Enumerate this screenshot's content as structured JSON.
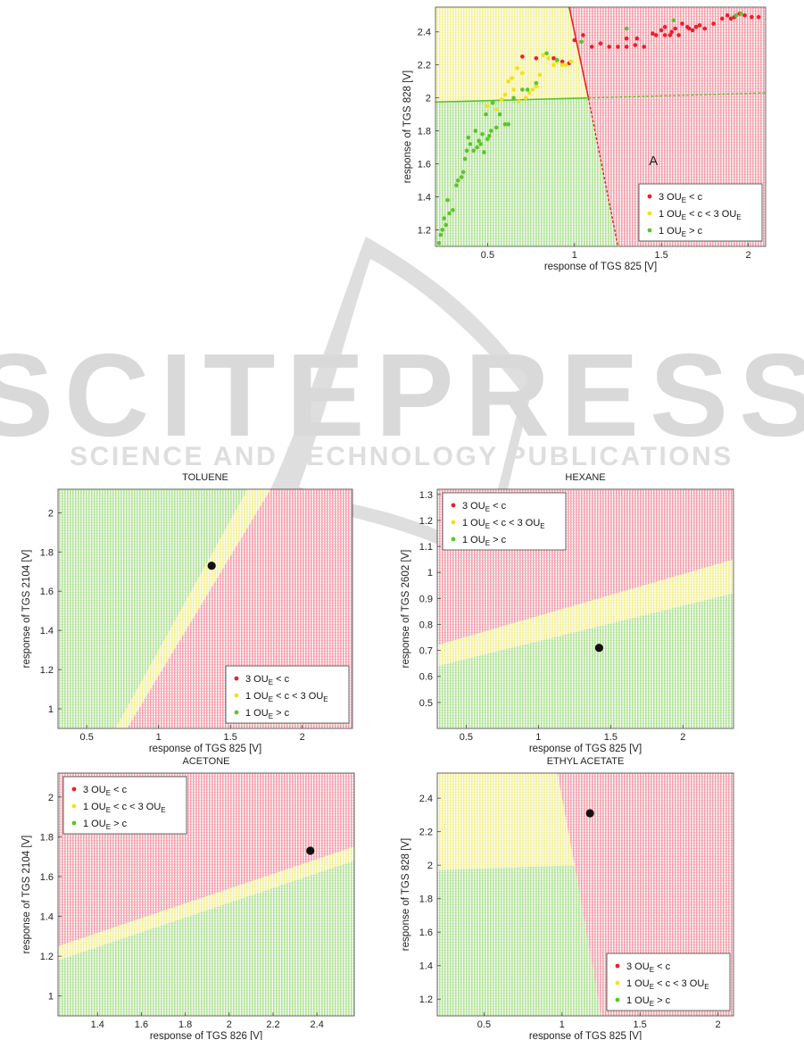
{
  "watermark": {
    "name": "SCITEPRESS",
    "tagline": "SCIENCE AND TECHNOLOGY PUBLICATIONS"
  },
  "colors": {
    "red": "#e8202a",
    "yellow": "#f0e21a",
    "green": "#5cc42e",
    "red_region": "#f2a4ae",
    "yellow_region": "#f4f09a",
    "green_region": "#b4e49a",
    "marker": "#111111"
  },
  "legend_entries": [
    {
      "key": "red",
      "parts": [
        "3 OU",
        "E",
        " < c"
      ]
    },
    {
      "key": "yellow",
      "parts": [
        "1 OU",
        "E",
        " < c < 3 OU",
        "E"
      ]
    },
    {
      "key": "green",
      "parts": [
        "1 OU",
        "E",
        " > c"
      ]
    }
  ],
  "chart_data": [
    {
      "id": "A",
      "type": "scatter",
      "title": "",
      "annotation": "A",
      "xlabel": "response of TGS 825 [V]",
      "ylabel": "response of TGS 828 [V]",
      "xlim": [
        0.2,
        2.1
      ],
      "ylim": [
        1.1,
        2.55
      ],
      "xticks": [
        0.5,
        1,
        1.5,
        2
      ],
      "yticks": [
        1.2,
        1.4,
        1.6,
        1.8,
        2,
        2.2,
        2.4
      ],
      "xtick_labels": [
        "0.5",
        "1",
        "1.5",
        "2"
      ],
      "ytick_labels": [
        "1.2",
        "1.4",
        "1.6",
        "1.8",
        "2",
        "2.2",
        "2.4"
      ],
      "legend": "bottom-right",
      "regions": [
        {
          "class": "red",
          "polygon": [
            [
              0.97,
              2.55
            ],
            [
              2.1,
              2.55
            ],
            [
              2.1,
              1.1
            ],
            [
              1.25,
              1.1
            ],
            [
              1.08,
              2.0
            ]
          ]
        },
        {
          "class": "yellow",
          "polygon": [
            [
              0.2,
              1.97
            ],
            [
              1.08,
              2.0
            ],
            [
              0.97,
              2.55
            ],
            [
              0.2,
              2.55
            ]
          ]
        },
        {
          "class": "green",
          "polygon": [
            [
              0.2,
              1.1
            ],
            [
              1.25,
              1.1
            ],
            [
              1.08,
              2.0
            ],
            [
              0.2,
              1.97
            ]
          ]
        }
      ],
      "boundaries": [
        {
          "class": "red",
          "points": [
            [
              0.97,
              2.55
            ],
            [
              1.08,
              2.0
            ],
            [
              1.25,
              1.1
            ]
          ]
        },
        {
          "class": "green",
          "points": [
            [
              0.2,
              1.975
            ],
            [
              1.08,
              2.0
            ],
            [
              2.1,
              2.03
            ]
          ]
        }
      ],
      "series": [
        {
          "class": "red",
          "points": [
            [
              0.7,
              2.25
            ],
            [
              0.78,
              2.24
            ],
            [
              0.88,
              2.24
            ],
            [
              0.93,
              2.22
            ],
            [
              0.97,
              2.21
            ],
            [
              1.0,
              2.35
            ],
            [
              1.05,
              2.38
            ],
            [
              1.1,
              2.31
            ],
            [
              1.15,
              2.33
            ],
            [
              1.2,
              2.31
            ],
            [
              1.25,
              2.31
            ],
            [
              1.3,
              2.31
            ],
            [
              1.35,
              2.32
            ],
            [
              1.4,
              2.31
            ],
            [
              1.45,
              2.39
            ],
            [
              1.47,
              2.38
            ],
            [
              1.5,
              2.41
            ],
            [
              1.52,
              2.38
            ],
            [
              1.55,
              2.38
            ],
            [
              1.56,
              2.4
            ],
            [
              1.58,
              2.42
            ],
            [
              1.6,
              2.38
            ],
            [
              1.62,
              2.45
            ],
            [
              1.65,
              2.43
            ],
            [
              1.68,
              2.41
            ],
            [
              1.7,
              2.43
            ],
            [
              1.72,
              2.44
            ],
            [
              1.75,
              2.42
            ],
            [
              1.8,
              2.45
            ],
            [
              1.85,
              2.48
            ],
            [
              1.88,
              2.5
            ],
            [
              1.9,
              2.48
            ],
            [
              1.92,
              2.49
            ],
            [
              1.95,
              2.51
            ],
            [
              1.98,
              2.5
            ],
            [
              2.02,
              2.49
            ],
            [
              2.06,
              2.49
            ],
            [
              1.3,
              2.36
            ],
            [
              1.36,
              2.36
            ],
            [
              1.52,
              2.43
            ],
            [
              1.66,
              2.42
            ]
          ]
        },
        {
          "class": "yellow",
          "points": [
            [
              0.5,
              1.95
            ],
            [
              0.55,
              1.93
            ],
            [
              0.58,
              1.99
            ],
            [
              0.6,
              2.02
            ],
            [
              0.62,
              2.1
            ],
            [
              0.64,
              2.12
            ],
            [
              0.65,
              2.05
            ],
            [
              0.67,
              2.18
            ],
            [
              0.68,
              1.98
            ],
            [
              0.7,
              2.15
            ],
            [
              0.72,
              2.0
            ],
            [
              0.74,
              2.03
            ],
            [
              0.76,
              2.05
            ],
            [
              0.78,
              2.07
            ],
            [
              0.8,
              2.14
            ],
            [
              0.82,
              2.26
            ],
            [
              0.85,
              2.24
            ],
            [
              0.88,
              2.2
            ],
            [
              0.9,
              2.22
            ],
            [
              0.93,
              2.2
            ],
            [
              0.95,
              2.2
            ],
            [
              0.98,
              2.22
            ]
          ]
        },
        {
          "class": "green",
          "points": [
            [
              0.22,
              1.12
            ],
            [
              0.23,
              1.17
            ],
            [
              0.24,
              1.2
            ],
            [
              0.25,
              1.27
            ],
            [
              0.26,
              1.23
            ],
            [
              0.27,
              1.38
            ],
            [
              0.28,
              1.3
            ],
            [
              0.3,
              1.32
            ],
            [
              0.32,
              1.47
            ],
            [
              0.33,
              1.5
            ],
            [
              0.35,
              1.52
            ],
            [
              0.36,
              1.55
            ],
            [
              0.37,
              1.63
            ],
            [
              0.38,
              1.68
            ],
            [
              0.39,
              1.76
            ],
            [
              0.4,
              1.72
            ],
            [
              0.42,
              1.68
            ],
            [
              0.43,
              1.8
            ],
            [
              0.44,
              1.7
            ],
            [
              0.45,
              1.74
            ],
            [
              0.46,
              1.72
            ],
            [
              0.47,
              1.78
            ],
            [
              0.48,
              1.67
            ],
            [
              0.49,
              1.9
            ],
            [
              0.5,
              1.75
            ],
            [
              0.51,
              1.77
            ],
            [
              0.52,
              1.8
            ],
            [
              0.53,
              1.97
            ],
            [
              0.55,
              1.82
            ],
            [
              0.57,
              1.9
            ],
            [
              0.6,
              1.84
            ],
            [
              0.62,
              1.84
            ],
            [
              0.65,
              2.0
            ],
            [
              0.7,
              2.05
            ],
            [
              0.73,
              2.05
            ],
            [
              0.78,
              2.09
            ],
            [
              0.84,
              2.27
            ],
            [
              0.9,
              2.23
            ],
            [
              1.04,
              2.34
            ],
            [
              1.3,
              2.42
            ],
            [
              1.57,
              2.47
            ],
            [
              1.93,
              2.5
            ],
            [
              1.96,
              2.51
            ]
          ]
        }
      ],
      "markers": []
    },
    {
      "id": "toluene",
      "type": "scatter",
      "title": "TOLUENE",
      "xlabel": "response of TGS 825 [V]",
      "ylabel": "response of TGS 2104 [V]",
      "xlim": [
        0.3,
        2.35
      ],
      "ylim": [
        0.9,
        2.12
      ],
      "xticks": [
        0.5,
        1,
        1.5,
        2
      ],
      "yticks": [
        1,
        1.2,
        1.4,
        1.6,
        1.8,
        2
      ],
      "xtick_labels": [
        "0.5",
        "1",
        "1.5",
        "2"
      ],
      "ytick_labels": [
        "1",
        "1.2",
        "1.4",
        "1.6",
        "1.8",
        "2"
      ],
      "legend": "bottom-right",
      "regions": [
        {
          "class": "green",
          "polygon": [
            [
              0.3,
              0.9
            ],
            [
              0.3,
              2.12
            ],
            [
              1.62,
              2.12
            ],
            [
              0.7,
              0.9
            ]
          ]
        },
        {
          "class": "yellow",
          "polygon": [
            [
              0.7,
              0.9
            ],
            [
              1.62,
              2.12
            ],
            [
              1.78,
              2.12
            ],
            [
              0.78,
              0.9
            ]
          ]
        },
        {
          "class": "red",
          "polygon": [
            [
              0.78,
              0.9
            ],
            [
              1.78,
              2.12
            ],
            [
              2.35,
              2.12
            ],
            [
              2.35,
              0.9
            ]
          ]
        }
      ],
      "boundaries": [],
      "series": [],
      "markers": [
        [
          1.37,
          1.73
        ]
      ]
    },
    {
      "id": "hexane",
      "type": "scatter",
      "title": "HEXANE",
      "xlabel": "response of TGS 825 [V]",
      "ylabel": "response of TGS 2602 [V]",
      "xlim": [
        0.3,
        2.35
      ],
      "ylim": [
        0.4,
        1.32
      ],
      "xticks": [
        0.5,
        1,
        1.5,
        2
      ],
      "yticks": [
        0.5,
        0.6,
        0.7,
        0.8,
        0.9,
        1,
        1.1,
        1.2,
        1.3
      ],
      "xtick_labels": [
        "0.5",
        "1",
        "1.5",
        "2"
      ],
      "ytick_labels": [
        "0.5",
        "0.6",
        "0.7",
        "0.8",
        "0.9",
        "1",
        "1.1",
        "1.2",
        "1.3"
      ],
      "legend": "top-left",
      "regions": [
        {
          "class": "red",
          "polygon": [
            [
              0.3,
              0.72
            ],
            [
              2.35,
              1.05
            ],
            [
              2.35,
              1.32
            ],
            [
              0.3,
              1.32
            ]
          ]
        },
        {
          "class": "yellow",
          "polygon": [
            [
              0.3,
              0.64
            ],
            [
              2.35,
              0.92
            ],
            [
              2.35,
              1.05
            ],
            [
              0.3,
              0.72
            ]
          ]
        },
        {
          "class": "green",
          "polygon": [
            [
              0.3,
              0.4
            ],
            [
              2.35,
              0.4
            ],
            [
              2.35,
              0.92
            ],
            [
              0.3,
              0.64
            ]
          ]
        }
      ],
      "boundaries": [],
      "series": [],
      "markers": [
        [
          1.42,
          0.71
        ]
      ]
    },
    {
      "id": "acetone",
      "type": "scatter",
      "title": "ACETONE",
      "xlabel": "response of TGS 826 [V]",
      "ylabel": "response of TGS 2104 [V]",
      "xlim": [
        1.22,
        2.57
      ],
      "ylim": [
        0.9,
        2.12
      ],
      "xticks": [
        1.4,
        1.6,
        1.8,
        2,
        2.2,
        2.4
      ],
      "yticks": [
        1,
        1.2,
        1.4,
        1.6,
        1.8,
        2
      ],
      "xtick_labels": [
        "1.4",
        "1.6",
        "1.8",
        "2",
        "2.2",
        "2.4"
      ],
      "ytick_labels": [
        "1",
        "1.2",
        "1.4",
        "1.6",
        "1.8",
        "2"
      ],
      "legend": "top-left",
      "regions": [
        {
          "class": "red",
          "polygon": [
            [
              1.22,
              1.25
            ],
            [
              2.57,
              1.75
            ],
            [
              2.57,
              2.12
            ],
            [
              1.22,
              2.12
            ]
          ]
        },
        {
          "class": "yellow",
          "polygon": [
            [
              1.22,
              1.18
            ],
            [
              2.57,
              1.68
            ],
            [
              2.57,
              1.75
            ],
            [
              1.22,
              1.25
            ]
          ]
        },
        {
          "class": "green",
          "polygon": [
            [
              1.22,
              0.9
            ],
            [
              2.57,
              0.9
            ],
            [
              2.57,
              1.68
            ],
            [
              1.22,
              1.18
            ]
          ]
        }
      ],
      "boundaries": [],
      "series": [],
      "markers": [
        [
          2.37,
          1.73
        ]
      ]
    },
    {
      "id": "ethyl_acetate",
      "type": "scatter",
      "title": "ETHYL ACETATE",
      "xlabel": "response of TGS 825 [V]",
      "ylabel": "response of TGS 828 [V]",
      "xlim": [
        0.2,
        2.1
      ],
      "ylim": [
        1.1,
        2.55
      ],
      "xticks": [
        0.5,
        1,
        1.5,
        2
      ],
      "yticks": [
        1.2,
        1.4,
        1.6,
        1.8,
        2,
        2.2,
        2.4
      ],
      "xtick_labels": [
        "0.5",
        "1",
        "1.5",
        "2"
      ],
      "ytick_labels": [
        "1.2",
        "1.4",
        "1.6",
        "1.8",
        "2",
        "2.2",
        "2.4"
      ],
      "legend": "bottom-right",
      "regions": [
        {
          "class": "red",
          "polygon": [
            [
              0.97,
              2.55
            ],
            [
              2.1,
              2.55
            ],
            [
              2.1,
              1.1
            ],
            [
              1.25,
              1.1
            ],
            [
              1.08,
              2.0
            ]
          ]
        },
        {
          "class": "yellow",
          "polygon": [
            [
              0.2,
              1.97
            ],
            [
              1.08,
              2.0
            ],
            [
              0.97,
              2.55
            ],
            [
              0.2,
              2.55
            ]
          ]
        },
        {
          "class": "green",
          "polygon": [
            [
              0.2,
              1.1
            ],
            [
              1.25,
              1.1
            ],
            [
              1.08,
              2.0
            ],
            [
              0.2,
              1.97
            ]
          ]
        }
      ],
      "boundaries": [],
      "series": [],
      "markers": [
        [
          1.18,
          2.31
        ]
      ]
    }
  ]
}
